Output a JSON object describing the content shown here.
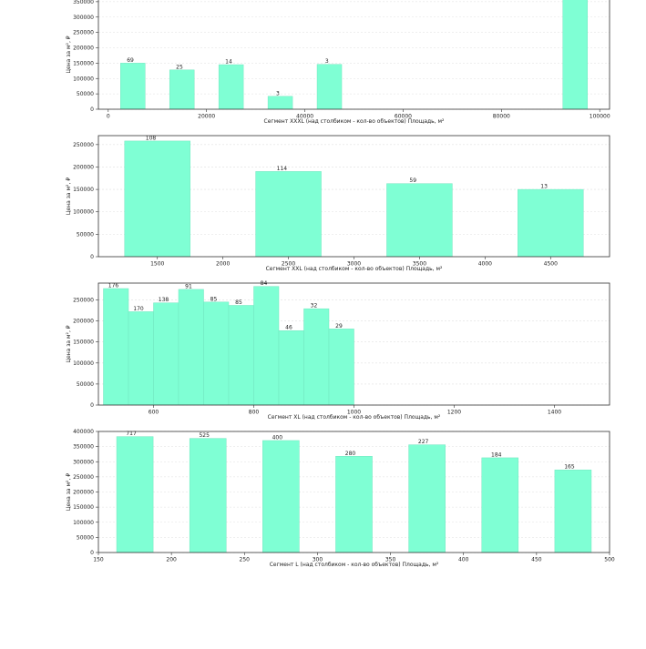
{
  "colors": {
    "bar": "#7fffd4",
    "bar_edge": "#73e6bf",
    "axis": "#333333",
    "grid": "#e0e0e0"
  },
  "chart_data": [
    {
      "type": "bar",
      "xlabel": "Сегмент XXXL (над столбиком - кол-во объектов)   Площадь, м²",
      "ylabel": "Цена за м², ₽",
      "xlim": [
        -2000,
        102000
      ],
      "ylim": [
        0,
        400000
      ],
      "grid": true,
      "x_ticks": [
        0,
        20000,
        40000,
        60000,
        80000,
        100000
      ],
      "x_tick_labels": [
        "0",
        "20000",
        "40000",
        "60000",
        "80000",
        "100000"
      ],
      "y_ticks": [
        0,
        50000,
        100000,
        150000,
        200000,
        250000,
        300000,
        350000
      ],
      "y_tick_labels": [
        "0",
        "50000",
        "100000",
        "150000",
        "200000",
        "250000",
        "300000",
        "350000"
      ],
      "bar_width": 5000,
      "x": [
        5000,
        15000,
        25000,
        35000,
        45000,
        95000
      ],
      "values": [
        150000,
        128000,
        145000,
        42000,
        146000,
        400000
      ],
      "labels": [
        "69",
        "25",
        "14",
        "3",
        "3",
        ""
      ]
    },
    {
      "type": "bar",
      "xlabel": "Сегмент XXL (над столбиком - кол-во объектов)   Площадь, м²",
      "ylabel": "Цена за м², ₽",
      "xlim": [
        1050,
        4950
      ],
      "ylim": [
        0,
        270000
      ],
      "grid": true,
      "x_ticks": [
        1500,
        2000,
        2500,
        3000,
        3500,
        4000,
        4500
      ],
      "x_tick_labels": [
        "1500",
        "2000",
        "2500",
        "3000",
        "3500",
        "4000",
        "4500"
      ],
      "y_ticks": [
        0,
        50000,
        100000,
        150000,
        200000,
        250000
      ],
      "y_tick_labels": [
        "0",
        "50000",
        "100000",
        "150000",
        "200000",
        "250000"
      ],
      "bar_width": 500,
      "x": [
        1500,
        2500,
        3500,
        4500
      ],
      "values": [
        258000,
        190000,
        163000,
        150000
      ],
      "labels": [
        "108",
        "114",
        "59",
        "13"
      ]
    },
    {
      "type": "bar",
      "xlabel": "Сегмент XL (над столбиком - кол-во объектов)   Площадь, м²",
      "ylabel": "Цена за м², ₽",
      "xlim": [
        490,
        1510
      ],
      "ylim": [
        0,
        290000
      ],
      "grid": true,
      "x_ticks": [
        600,
        800,
        1000,
        1200,
        1400
      ],
      "x_tick_labels": [
        "600",
        "800",
        "1000",
        "1200",
        "1400"
      ],
      "y_ticks": [
        0,
        50000,
        100000,
        150000,
        200000,
        250000
      ],
      "y_tick_labels": [
        "0",
        "50000",
        "100000",
        "150000",
        "200000",
        "250000"
      ],
      "bar_width": 50,
      "x": [
        525,
        575,
        625,
        675,
        725,
        775,
        825,
        875,
        925,
        975
      ],
      "values": [
        277000,
        222000,
        243000,
        275000,
        245000,
        237000,
        282000,
        177000,
        229000,
        181000
      ],
      "labels": [
        "176",
        "170",
        "138",
        "91",
        "85",
        "85",
        "84",
        "46",
        "32",
        "29"
      ]
    },
    {
      "type": "bar",
      "xlabel": "Сегмент L (над столбиком - кол-во объектов)   Площадь, м²",
      "ylabel": "Цена за м², ₽",
      "xlim": [
        150,
        500
      ],
      "ylim": [
        0,
        400000
      ],
      "grid": true,
      "x_ticks": [
        150,
        200,
        250,
        300,
        350,
        400,
        450,
        500
      ],
      "x_tick_labels": [
        "150",
        "200",
        "250",
        "300",
        "350",
        "400",
        "450",
        "500"
      ],
      "y_ticks": [
        0,
        50000,
        100000,
        150000,
        200000,
        250000,
        300000,
        350000,
        400000
      ],
      "y_tick_labels": [
        "0",
        "50000",
        "100000",
        "150000",
        "200000",
        "250000",
        "300000",
        "350000",
        "400000"
      ],
      "bar_width": 25,
      "x": [
        175,
        225,
        275,
        325,
        375,
        425,
        475
      ],
      "values": [
        383000,
        377000,
        370000,
        318000,
        356000,
        313000,
        273000
      ],
      "labels": [
        "717",
        "525",
        "400",
        "280",
        "227",
        "184",
        "165"
      ]
    }
  ]
}
